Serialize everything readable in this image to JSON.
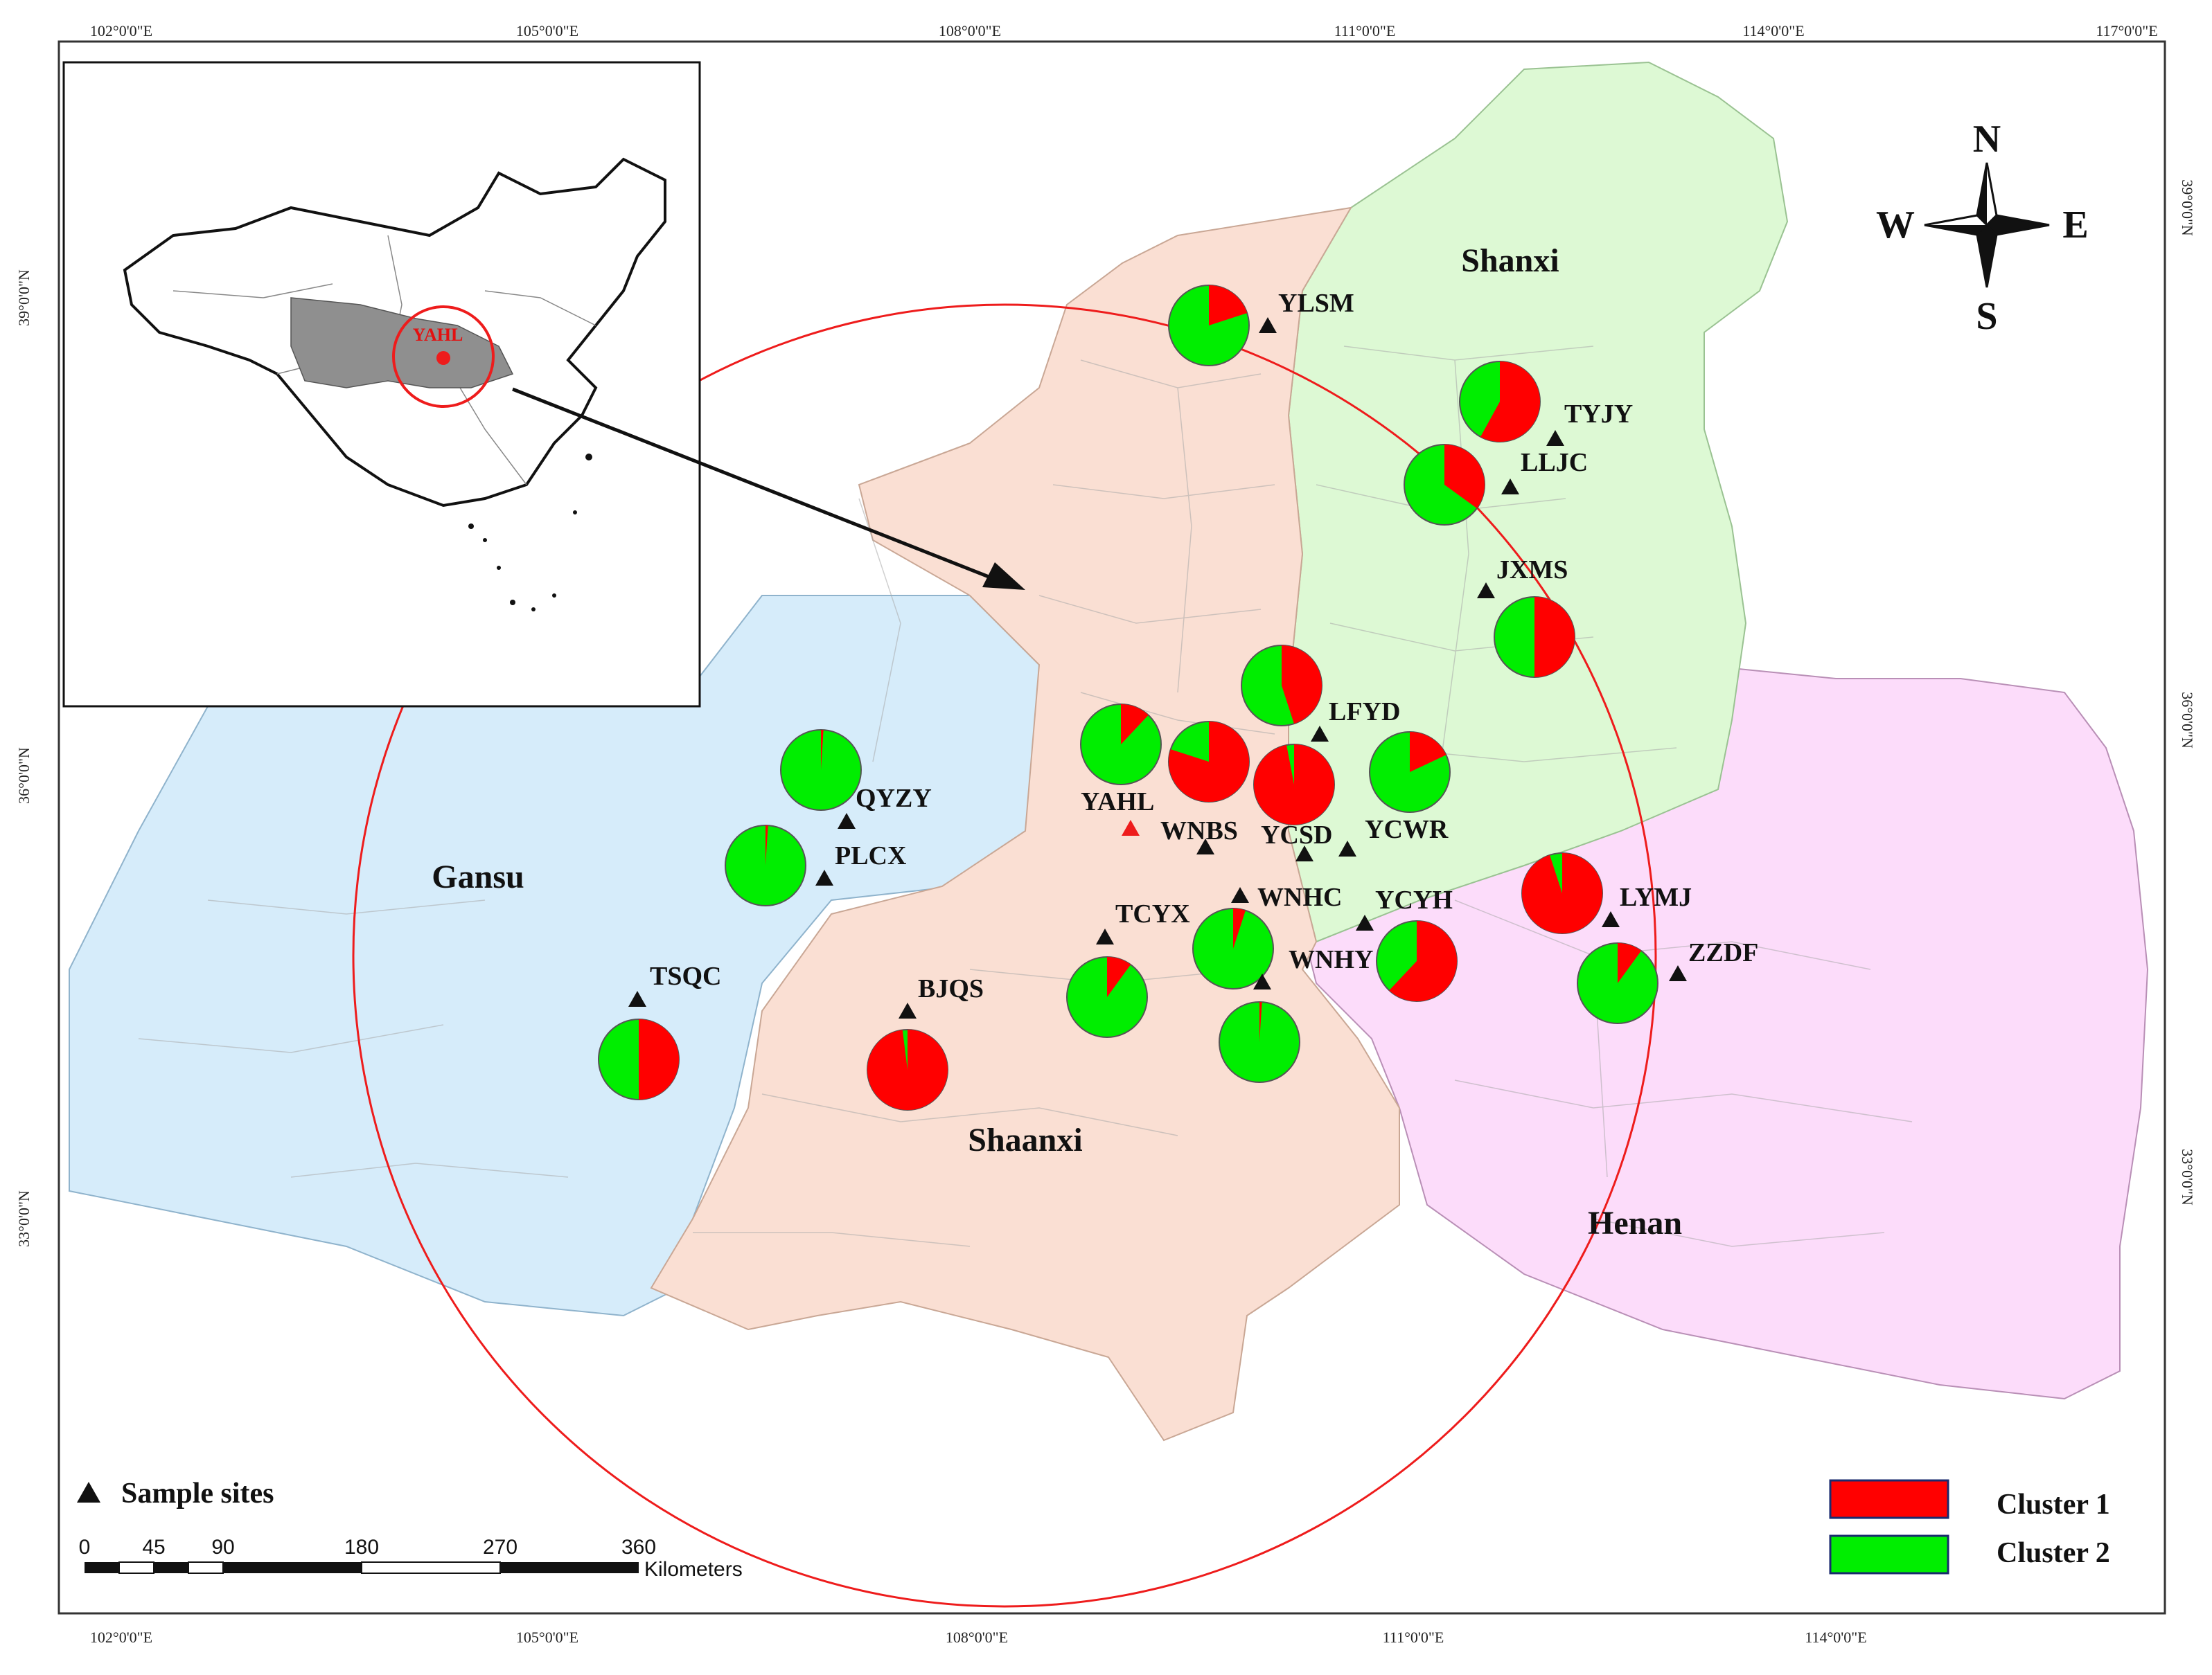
{
  "grid_labels": {
    "top": [
      "102°0'0\"E",
      "105°0'0\"E",
      "108°0'0\"E",
      "111°0'0\"E",
      "114°0'0\"E",
      "117°0'0\"E"
    ],
    "bottom": [
      "102°0'0\"E",
      "105°0'0\"E",
      "108°0'0\"E",
      "111°0'0\"E",
      "114°0'0\"E"
    ],
    "left": [
      "39°0'0\"N",
      "36°0'0\"N",
      "33°0'0\"N"
    ],
    "right": [
      "39°0'0\"N",
      "36°0'0\"N",
      "33°0'0\"N"
    ]
  },
  "provinces": {
    "gansu": "Gansu",
    "shaanxi": "Shaanxi",
    "shanxi": "Shanxi",
    "henan": "Henan"
  },
  "compass": {
    "n": "N",
    "s": "S",
    "e": "E",
    "w": "W"
  },
  "inset": {
    "label": "YAHL"
  },
  "legend": {
    "sample_sites": "Sample sites",
    "cluster1": "Cluster 1",
    "cluster2": "Cluster 2",
    "cluster1_color": "#ff0000",
    "cluster2_color": "#00ee00"
  },
  "scale_bar": {
    "ticks": [
      "0",
      "45",
      "90",
      "180",
      "270",
      "360"
    ],
    "unit": "Kilometers"
  },
  "sites": [
    {
      "code": "YLSM",
      "cluster1": 0.2
    },
    {
      "code": "TYJY",
      "cluster1": 0.58
    },
    {
      "code": "LLJC",
      "cluster1": 0.35
    },
    {
      "code": "JXMS",
      "cluster1": 0.5
    },
    {
      "code": "LFYD",
      "cluster1": 0.45
    },
    {
      "code": "YAHL",
      "cluster1": 0.12
    },
    {
      "code": "WNBS",
      "cluster1": 0.8
    },
    {
      "code": "YCSD",
      "cluster1": 0.97
    },
    {
      "code": "YCWR",
      "cluster1": 0.18
    },
    {
      "code": "QYZY",
      "cluster1": 0.01
    },
    {
      "code": "PLCX",
      "cluster1": 0.01
    },
    {
      "code": "TSQC",
      "cluster1": 0.5
    },
    {
      "code": "BJQS",
      "cluster1": 0.98
    },
    {
      "code": "TCYX",
      "cluster1": 0.1
    },
    {
      "code": "WNHC",
      "cluster1": 0.05
    },
    {
      "code": "WNHY",
      "cluster1": 0.01
    },
    {
      "code": "YCYH",
      "cluster1": 0.62
    },
    {
      "code": "LYMJ",
      "cluster1": 0.95
    },
    {
      "code": "ZZDF",
      "cluster1": 0.1
    }
  ]
}
